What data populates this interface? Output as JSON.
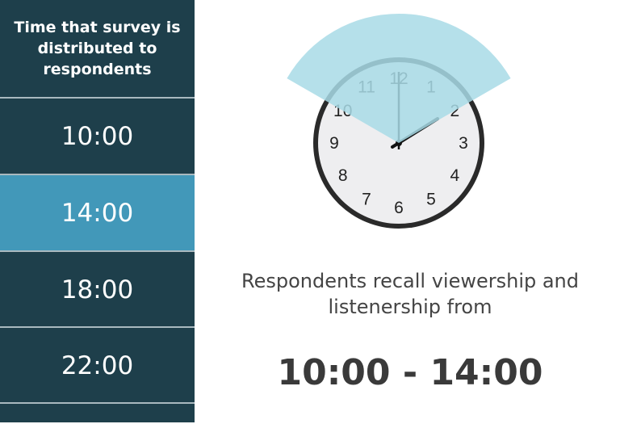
{
  "sidebar": {
    "header": "Time that survey is distributed to respondents",
    "items": [
      {
        "label": "10:00",
        "active": false
      },
      {
        "label": "14:00",
        "active": true
      },
      {
        "label": "18:00",
        "active": false
      },
      {
        "label": "22:00",
        "active": false
      }
    ]
  },
  "clock": {
    "numbers": [
      "12",
      "1",
      "2",
      "3",
      "4",
      "5",
      "6",
      "7",
      "8",
      "9",
      "10",
      "11"
    ],
    "time_shown": "14:00",
    "highlight_from": "10:00",
    "highlight_to": "14:00"
  },
  "main": {
    "description": "Respondents recall viewership and listenership from",
    "range": "10:00 - 14:00"
  },
  "colors": {
    "sidebar": "#1e3f4b",
    "active": "#4298b9",
    "wedge": "#a8dbe6"
  }
}
